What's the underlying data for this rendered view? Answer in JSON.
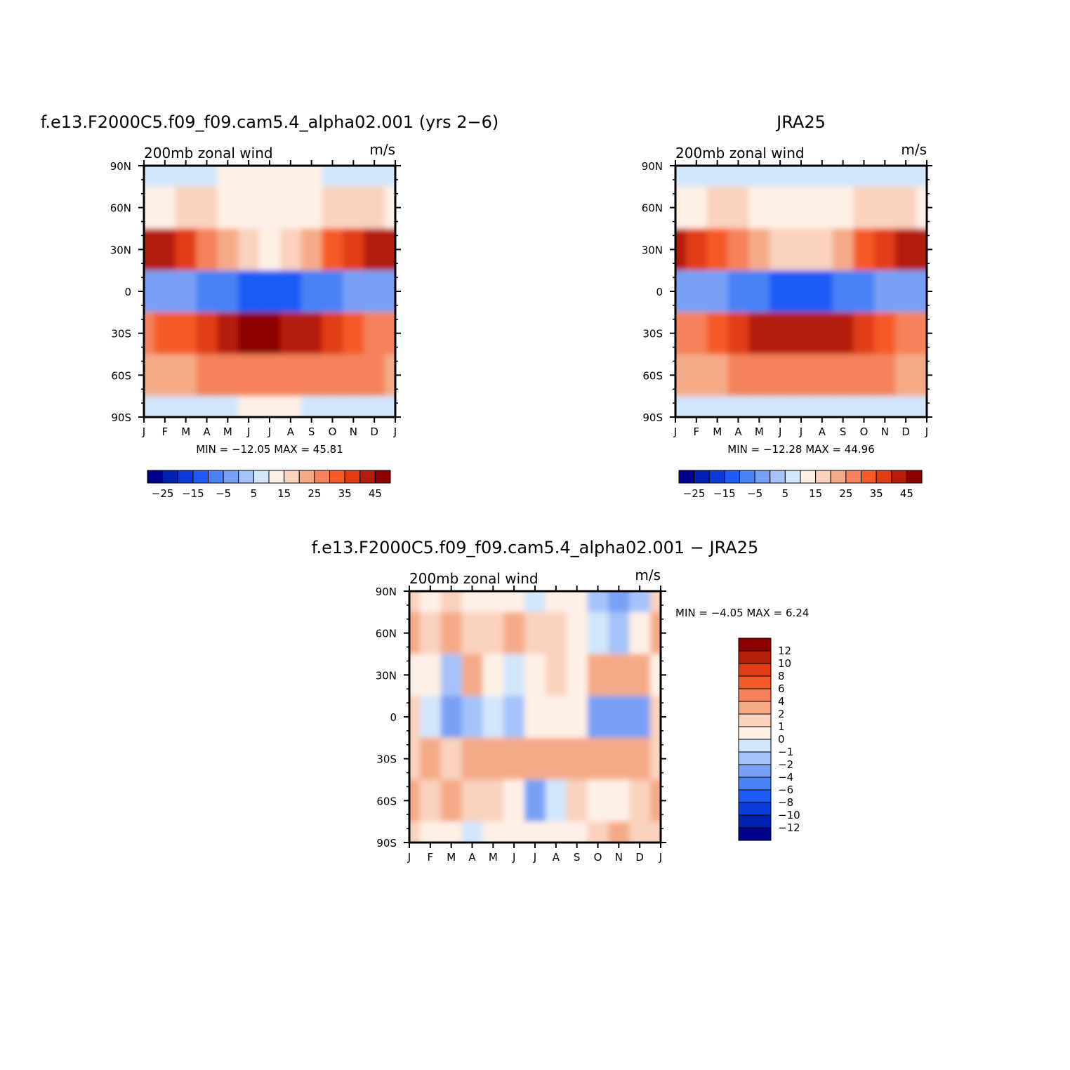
{
  "figure": {
    "panels": [
      {
        "title": "f.e13.F2000C5.f09_f09.cam5.4_alpha02.001 (yrs 2−6)",
        "left_label": "200mb zonal wind",
        "right_label": "m/s",
        "stats": "MIN = −12.05 MAX =   45.81"
      },
      {
        "title": "JRA25",
        "left_label": "200mb zonal wind",
        "right_label": "m/s",
        "stats": "MIN = −12.28 MAX =   44.96"
      },
      {
        "title": "f.e13.F2000C5.f09_f09.cam5.4_alpha02.001 − JRA25",
        "left_label": "200mb zonal wind",
        "right_label": "m/s",
        "stats": "MIN =    −4.05 MAX =    6.24"
      }
    ],
    "x_ticks": [
      "J",
      "F",
      "M",
      "A",
      "M",
      "J",
      "J",
      "A",
      "S",
      "O",
      "N",
      "D",
      "J"
    ],
    "y_ticks": [
      "90N",
      "60N",
      "30N",
      "0",
      "30S",
      "60S",
      "90S"
    ],
    "colorbar_top": {
      "labels": [
        "−25",
        "−15",
        "−5",
        "5",
        "15",
        "25",
        "35",
        "45"
      ],
      "colors": [
        "#00008c",
        "#0022b4",
        "#0a3cdc",
        "#1e5af5",
        "#4a82f5",
        "#78a0f5",
        "#a5c3fa",
        "#d2e6fc",
        "#fff0e6",
        "#fad2be",
        "#f5aa87",
        "#f5825a",
        "#f55a28",
        "#e13c14",
        "#b41e0a",
        "#8c0000"
      ]
    },
    "colorbar_diff": {
      "labels": [
        "12",
        "10",
        "8",
        "6",
        "4",
        "2",
        "1",
        "0",
        "−1",
        "−2",
        "−4",
        "−6",
        "−8",
        "−10",
        "−12"
      ],
      "colors": [
        "#8c0000",
        "#b41e0a",
        "#e13c14",
        "#f55a28",
        "#f5825a",
        "#f5aa87",
        "#fad2be",
        "#fff0e6",
        "#d2e6fc",
        "#a5c3fa",
        "#78a0f5",
        "#4a82f5",
        "#1e5af5",
        "#0a3cdc",
        "#0022b4",
        "#00008c"
      ]
    }
  },
  "chart_data": [
    {
      "type": "heatmap",
      "title": "f.e13.F2000C5.f09_f09.cam5.4_alpha02.001 (yrs 2−6)",
      "variable": "200mb zonal wind",
      "units": "m/s",
      "x": [
        "J",
        "F",
        "M",
        "A",
        "M",
        "J",
        "J",
        "A",
        "S",
        "O",
        "N",
        "D",
        "J"
      ],
      "y": [
        "90N",
        "60N",
        "30N",
        "0",
        "30S",
        "60S",
        "90S"
      ],
      "values": [
        [
          5,
          6,
          7,
          8,
          10,
          12,
          14,
          13,
          11,
          9,
          7,
          5,
          5
        ],
        [
          14,
          14,
          15,
          16,
          14,
          12,
          11,
          12,
          14,
          16,
          17,
          16,
          14
        ],
        [
          42,
          40,
          35,
          28,
          20,
          15,
          14,
          16,
          22,
          30,
          38,
          42,
          42
        ],
        [
          -4,
          -5,
          -5,
          -7,
          -10,
          -12,
          -12,
          -11,
          -8,
          -6,
          -5,
          -4,
          -4
        ],
        [
          28,
          30,
          34,
          38,
          42,
          45,
          45,
          44,
          40,
          35,
          30,
          28,
          28
        ],
        [
          20,
          22,
          24,
          27,
          28,
          28,
          28,
          28,
          27,
          26,
          28,
          28,
          20
        ],
        [
          6,
          6,
          7,
          8,
          9,
          10,
          10,
          10,
          9,
          8,
          7,
          6,
          6
        ]
      ],
      "min": -12.05,
      "max": 45.81,
      "colorbar_levels": [
        -30,
        -25,
        -20,
        -15,
        -10,
        -5,
        0,
        5,
        10,
        15,
        20,
        25,
        30,
        35,
        40,
        45
      ]
    },
    {
      "type": "heatmap",
      "title": "JRA25",
      "variable": "200mb zonal wind",
      "units": "m/s",
      "x": [
        "J",
        "F",
        "M",
        "A",
        "M",
        "J",
        "J",
        "A",
        "S",
        "O",
        "N",
        "D",
        "J"
      ],
      "y": [
        "90N",
        "60N",
        "30N",
        "0",
        "30S",
        "60S",
        "90S"
      ],
      "values": [
        [
          6,
          6,
          7,
          7,
          6,
          5,
          5,
          5,
          5,
          6,
          6,
          6,
          6
        ],
        [
          14,
          14,
          15,
          15,
          13,
          11,
          10,
          11,
          13,
          15,
          16,
          15,
          14
        ],
        [
          40,
          38,
          33,
          27,
          20,
          16,
          15,
          17,
          22,
          30,
          37,
          41,
          40
        ],
        [
          -3,
          -4,
          -5,
          -7,
          -10,
          -12,
          -12,
          -11,
          -9,
          -6,
          -4,
          -3,
          -3
        ],
        [
          27,
          29,
          33,
          37,
          41,
          44,
          44,
          43,
          40,
          35,
          30,
          27,
          27
        ],
        [
          20,
          22,
          24,
          26,
          27,
          27,
          27,
          27,
          27,
          26,
          25,
          24,
          20
        ],
        [
          6,
          6,
          7,
          8,
          9,
          9,
          9,
          9,
          9,
          8,
          7,
          6,
          6
        ]
      ],
      "min": -12.28,
      "max": 44.96,
      "colorbar_levels": [
        -30,
        -25,
        -20,
        -15,
        -10,
        -5,
        0,
        5,
        10,
        15,
        20,
        25,
        30,
        35,
        40,
        45
      ]
    },
    {
      "type": "heatmap",
      "title": "f.e13.F2000C5.f09_f09.cam5.4_alpha02.001 − JRA25",
      "variable": "200mb zonal wind",
      "units": "m/s",
      "x": [
        "J",
        "F",
        "M",
        "A",
        "M",
        "J",
        "J",
        "A",
        "S",
        "O",
        "N",
        "D",
        "J"
      ],
      "y": [
        "90N",
        "60N",
        "30N",
        "0",
        "30S",
        "60S",
        "90S"
      ],
      "values": [
        [
          1.5,
          0.5,
          1.0,
          0.5,
          0.5,
          0.5,
          -0.5,
          0.5,
          0.5,
          -2.0,
          -3.0,
          -1.5,
          1.5
        ],
        [
          2.5,
          1.0,
          3.5,
          1.0,
          1.5,
          2.0,
          1.5,
          1.0,
          0.5,
          -1.0,
          -2.0,
          0.0,
          2.5
        ],
        [
          0.5,
          0.0,
          -1.5,
          2.0,
          0.0,
          -1.0,
          0.5,
          1.0,
          0.5,
          2.5,
          2.5,
          2.0,
          0.5
        ],
        [
          1.0,
          -1.0,
          -3.0,
          -2.0,
          -1.0,
          -1.5,
          0.5,
          0.5,
          0.5,
          -2.5,
          -4.0,
          -3.0,
          1.0
        ],
        [
          1.5,
          2.5,
          1.5,
          2.5,
          2.5,
          2.5,
          3.0,
          3.5,
          2.0,
          2.5,
          2.0,
          2.5,
          1.5
        ],
        [
          3.0,
          1.5,
          2.5,
          1.5,
          1.0,
          0.5,
          -3.0,
          -1.0,
          1.0,
          0.5,
          0.5,
          1.5,
          3.0
        ],
        [
          1.0,
          0.5,
          0.5,
          -0.5,
          0.0,
          0.0,
          0.5,
          0.5,
          0.5,
          1.0,
          2.0,
          1.0,
          1.0
        ]
      ],
      "min": -4.05,
      "max": 6.24,
      "colorbar_levels": [
        12,
        10,
        8,
        6,
        4,
        2,
        1,
        0,
        -1,
        -2,
        -4,
        -6,
        -8,
        -10,
        -12
      ]
    }
  ]
}
